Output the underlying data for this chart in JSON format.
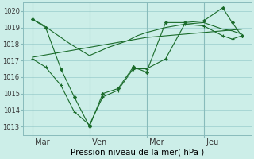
{
  "xlabel": "Pression niveau de la mer( hPa )",
  "bg_color": "#cceee8",
  "grid_color": "#99cccc",
  "line_color": "#1a6b2a",
  "vline_color": "#88bbbb",
  "ylim": [
    1012.5,
    1020.5
  ],
  "yticks": [
    1013,
    1014,
    1015,
    1016,
    1017,
    1018,
    1019,
    1020
  ],
  "xtick_labels": [
    " Mar",
    " Ven",
    " Mer",
    " Jeu"
  ],
  "xtick_positions": [
    0,
    3,
    6,
    9
  ],
  "xlim": [
    -0.5,
    11.5
  ],
  "line1_x": [
    0,
    0.5,
    1,
    2,
    3,
    4,
    5,
    5.5,
    6,
    7,
    8,
    9,
    10,
    10.5,
    11
  ],
  "line1_y": [
    1019.5,
    1019.2,
    1018.8,
    1018.0,
    1017.3,
    1017.8,
    1018.2,
    1018.5,
    1018.7,
    1019.0,
    1019.2,
    1019.3,
    1018.9,
    1018.8,
    1018.6
  ],
  "line2_x": [
    0,
    1,
    2,
    3,
    4,
    5,
    6,
    7,
    8,
    9,
    10,
    11
  ],
  "line2_y": [
    1017.2,
    1017.4,
    1017.6,
    1017.8,
    1018.0,
    1018.2,
    1018.4,
    1018.5,
    1018.6,
    1018.7,
    1018.8,
    1018.9
  ],
  "zigzag1_x": [
    0,
    0.7,
    1.5,
    2.2,
    3.0,
    3.7,
    4.5,
    5.3,
    6.0,
    7.0,
    8.0,
    9.0,
    10.0,
    10.5,
    11.0
  ],
  "zigzag1_y": [
    1019.5,
    1019.0,
    1016.5,
    1014.8,
    1013.0,
    1015.0,
    1015.3,
    1016.6,
    1016.3,
    1019.3,
    1019.3,
    1019.4,
    1020.2,
    1019.3,
    1018.5
  ],
  "zigzag2_x": [
    0,
    0.7,
    1.5,
    2.2,
    3.0,
    3.7,
    4.5,
    5.3,
    6.0,
    7.0,
    8.0,
    9.0,
    10.0,
    10.5,
    11.0
  ],
  "zigzag2_y": [
    1017.1,
    1016.6,
    1015.5,
    1013.9,
    1013.1,
    1014.8,
    1015.2,
    1016.5,
    1016.5,
    1017.1,
    1019.2,
    1019.1,
    1018.5,
    1018.3,
    1018.5
  ],
  "vline_positions": [
    0,
    3,
    6,
    9
  ]
}
